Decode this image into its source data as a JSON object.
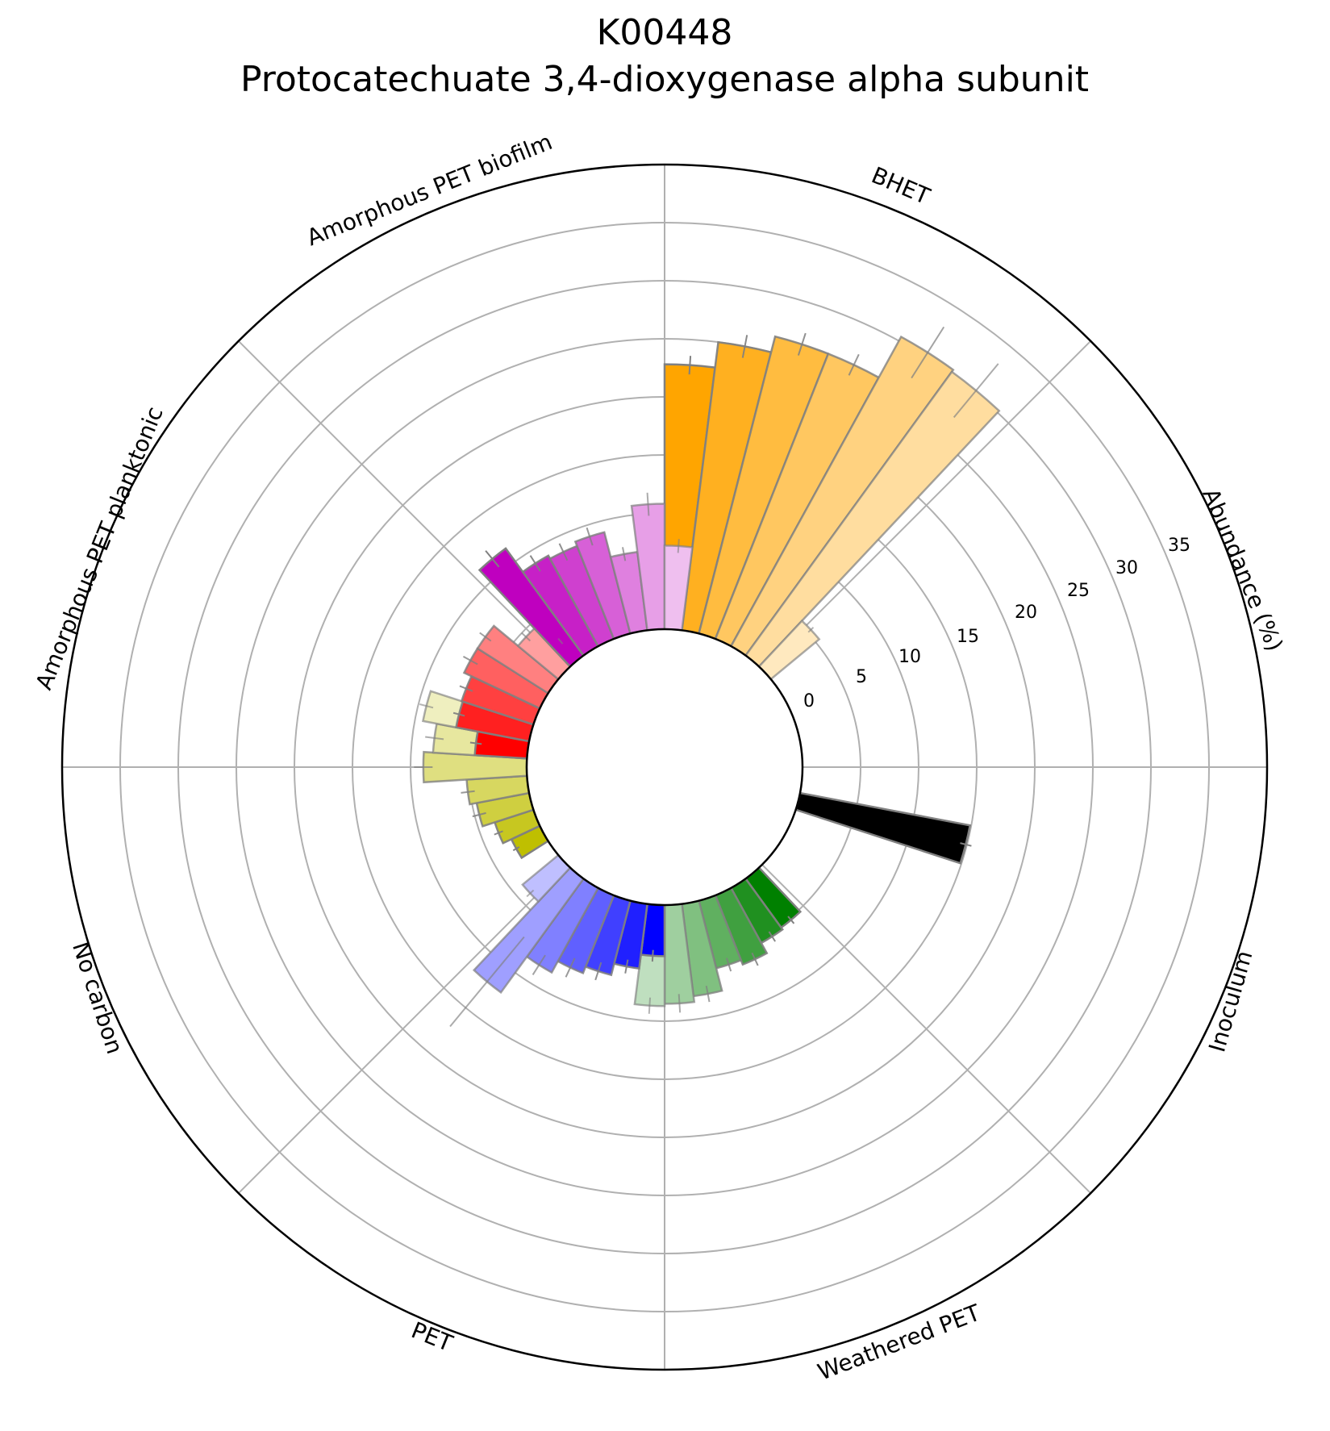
{
  "chart_data": {
    "type": "polar-bar",
    "title": "K00448",
    "subtitle": "Protocatechuate 3,4-dioxygenase alpha subunit",
    "radial_label": "Abundance (%)",
    "radial_ticks": [
      "0",
      "5",
      "10",
      "15",
      "20",
      "25",
      "30",
      "35"
    ],
    "radial_range": [
      0,
      40
    ],
    "grid": true,
    "groups": [
      {
        "name": "BHET",
        "color": "#FFA500",
        "values": [
          22.8,
          25.0,
          26.4,
          26.4,
          30.4,
          30.2,
          5.4
        ],
        "errors": [
          0.8,
          1.0,
          1.0,
          1.0,
          2.6,
          3.0,
          0.3
        ]
      },
      {
        "name": "Inoculum",
        "color": "#000000",
        "values": [
          14.9
        ],
        "errors": [
          0.5
        ]
      },
      {
        "name": "Weathered PET",
        "color": "#008000",
        "values": [
          5.2,
          5.4,
          6.4,
          6.0,
          8.0,
          8.5,
          8.7
        ],
        "errors": [
          0.4,
          0.5,
          0.6,
          0.6,
          0.7,
          0.8,
          0.7
        ]
      },
      {
        "name": "PET",
        "color": "#0000FF",
        "values": [
          4.4,
          5.6,
          6.6,
          7.2,
          8.3,
          12.1,
          4.0
        ],
        "errors": [
          0.5,
          0.6,
          0.8,
          0.9,
          1.0,
          5.0,
          0.4
        ]
      },
      {
        "name": "No carbon",
        "color": "#BFBF00",
        "values": [
          2.7,
          3.5,
          4.6,
          5.2,
          8.9,
          8.1,
          9.3
        ],
        "errors": [
          0.3,
          0.4,
          0.6,
          0.6,
          0.8,
          0.8,
          0.6
        ]
      },
      {
        "name": "Amorphous PET planktonic",
        "color": "#FF0000",
        "values": [
          4.5,
          6.4,
          6.5,
          7.2,
          7.2,
          4.5,
          2.2
        ],
        "errors": [
          0.5,
          0.5,
          0.6,
          0.7,
          0.6,
          0.5,
          0.3
        ]
      },
      {
        "name": "Amorphous PET biofilm",
        "color": "#BF00BF",
        "values": [
          11.4,
          8.9,
          8.6,
          9.0,
          6.8,
          10.8,
          7.2
        ],
        "errors": [
          0.9,
          0.8,
          0.8,
          0.8,
          0.6,
          1.0,
          0.6
        ]
      }
    ]
  }
}
